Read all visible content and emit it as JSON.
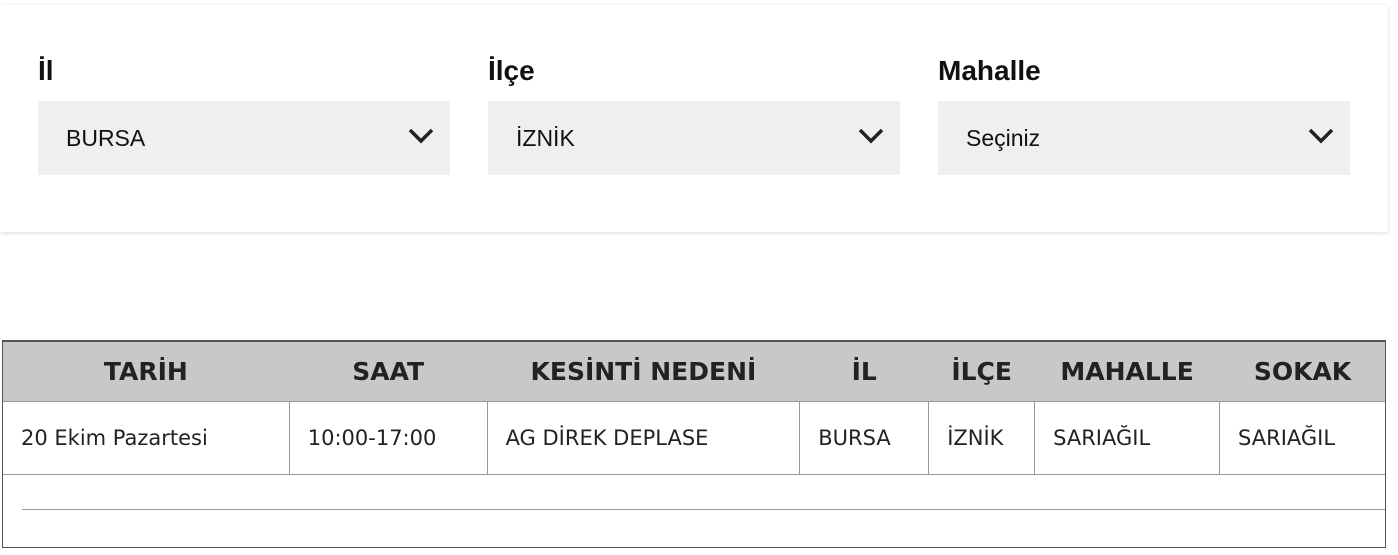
{
  "filters": [
    {
      "label": "İl",
      "value": "BURSA"
    },
    {
      "label": "İlçe",
      "value": "İZNİK"
    },
    {
      "label": "Mahalle",
      "value": "Seçiniz"
    }
  ],
  "table": {
    "headers": [
      "TARİH",
      "SAAT",
      "KESİNTİ NEDENİ",
      "İL",
      "İLÇE",
      "MAHALLE",
      "SOKAK"
    ],
    "rows": [
      [
        "20 Ekim Pazartesi",
        "10:00-17:00",
        "AG DİREK DEPLASE",
        "BURSA",
        "İZNİK",
        "SARIAĞIL",
        "SARIAĞIL"
      ]
    ]
  }
}
